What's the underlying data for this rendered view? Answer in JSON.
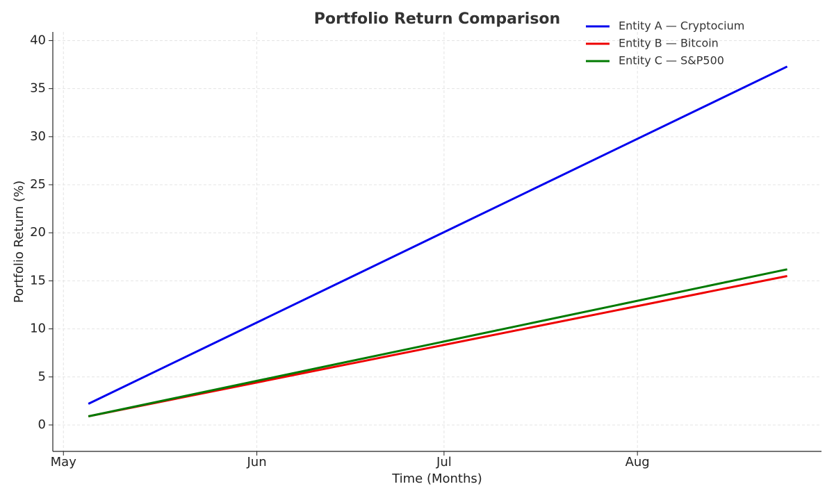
{
  "chart_data": {
    "type": "line",
    "title": "Portfolio Return Comparison",
    "x_label": "Time (Months)",
    "y_label": "Portfolio Return (%)",
    "x": [
      4,
      116
    ],
    "series": [
      {
        "name": "Entity A — Cryptocium",
        "color": "#0000ee",
        "values": [
          2.2,
          37.3
        ]
      },
      {
        "name": "Entity B — Bitcoin",
        "color": "#ee0000",
        "values": [
          0.9,
          15.5
        ]
      },
      {
        "name": "Entity C — S&P500",
        "color": "#007a00",
        "values": [
          0.9,
          16.2
        ]
      }
    ],
    "xlim": [
      -1.7,
      121.5
    ],
    "xticks": [
      {
        "value": 0,
        "label": "May"
      },
      {
        "value": 31,
        "label": "Jun"
      },
      {
        "value": 61,
        "label": "Jul"
      },
      {
        "value": 92,
        "label": "Aug"
      }
    ],
    "ylim": [
      -2.75,
      40.9
    ],
    "yticks": [
      0,
      5,
      10,
      15,
      20,
      25,
      30,
      35,
      40
    ],
    "grid": true,
    "legend": "upper right"
  }
}
